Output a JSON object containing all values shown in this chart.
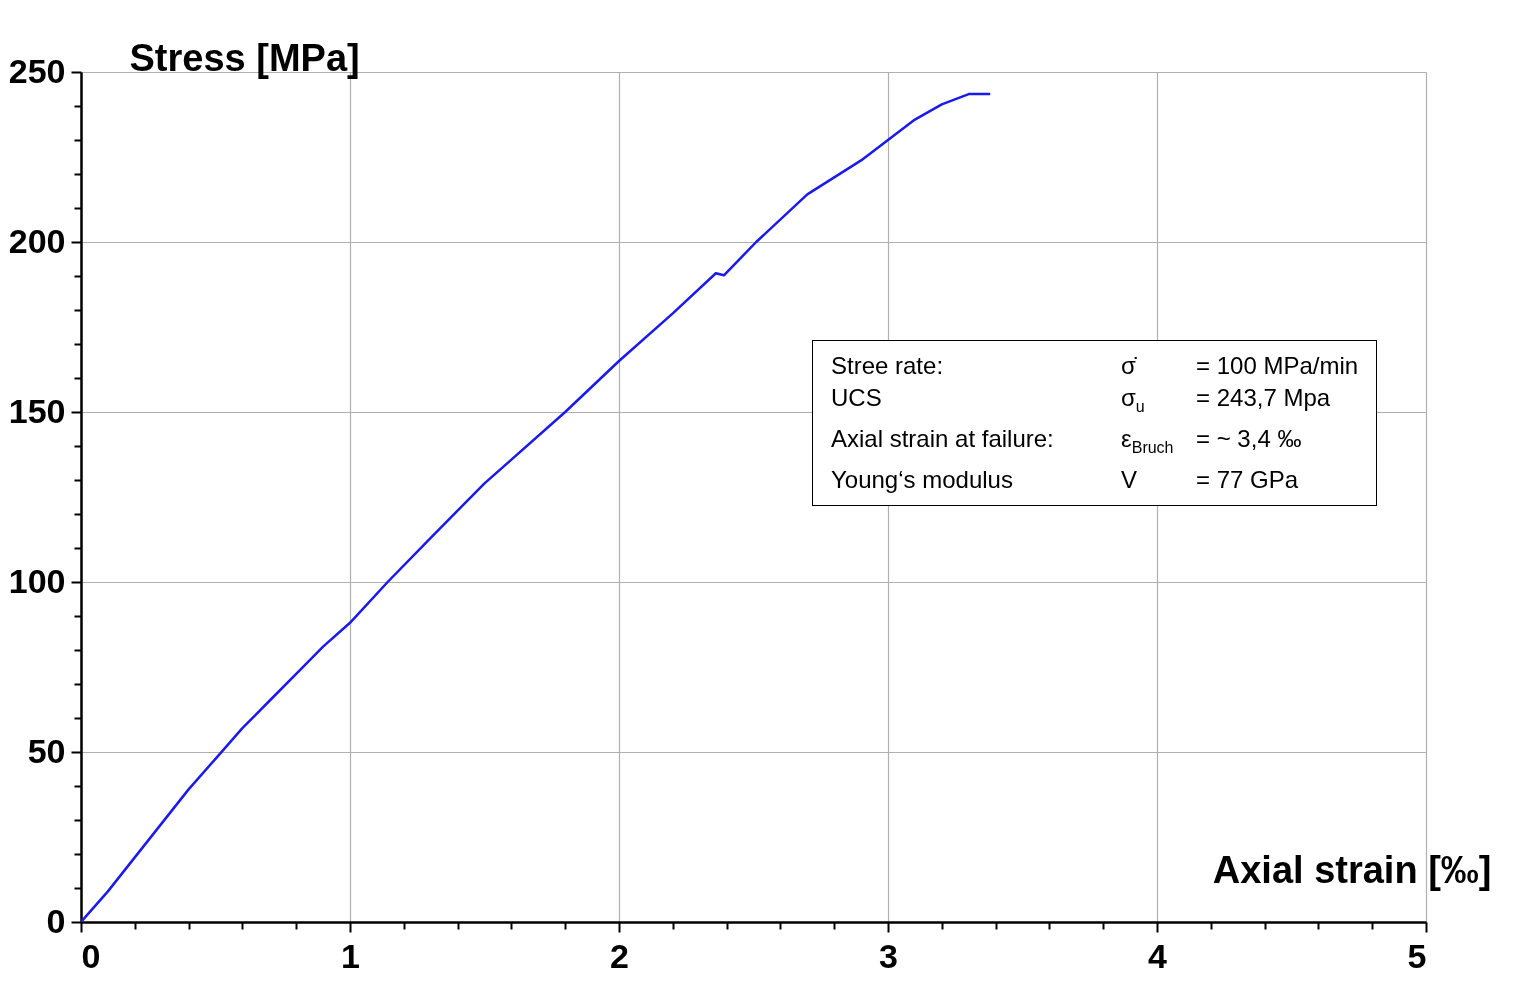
{
  "chart_data": {
    "type": "line",
    "xlabel": "Axial strain [‰]",
    "ylabel": "Stress [MPa]",
    "x": [
      0,
      0.1,
      0.2,
      0.3,
      0.4,
      0.5,
      0.6,
      0.7,
      0.8,
      0.9,
      1.0,
      1.14,
      1.3,
      1.5,
      1.8,
      2.0,
      2.2,
      2.36,
      2.39,
      2.51,
      2.7,
      2.9,
      3.0,
      3.1,
      3.2,
      3.3,
      3.38
    ],
    "series": [
      {
        "color": "#1a1aee",
        "values": [
          0,
          9,
          19,
          29,
          39,
          48,
          57,
          65,
          73,
          81,
          88,
          100,
          113,
          129,
          150,
          165,
          179,
          190.8,
          190.2,
          200,
          214,
          224,
          230,
          236,
          240.5,
          243.5,
          243.5
        ]
      }
    ],
    "xlim": [
      0,
      5
    ],
    "ylim": [
      0,
      250
    ],
    "xticks": [
      0,
      {
        "value": 0.2,
        "label": null
      },
      {
        "value": 0.4,
        "label": null
      },
      {
        "value": 0.6,
        "label": null
      },
      {
        "value": 0.8,
        "label": null
      },
      1,
      {
        "value": 1.2,
        "label": null
      },
      {
        "value": 1.4,
        "label": null
      },
      {
        "value": 1.6,
        "label": null
      },
      {
        "value": 1.8,
        "label": null
      },
      2,
      {
        "value": 2.2,
        "label": null
      },
      {
        "value": 2.4,
        "label": null
      },
      {
        "value": 2.6,
        "label": null
      },
      {
        "value": 2.8,
        "label": null
      },
      3,
      {
        "value": 3.2,
        "label": null
      },
      {
        "value": 3.4,
        "label": null
      },
      {
        "value": 3.6,
        "label": null
      },
      {
        "value": 3.8,
        "label": null
      },
      4,
      {
        "value": 4.2,
        "label": null
      },
      {
        "value": 4.4,
        "label": null
      },
      {
        "value": 4.6,
        "label": null
      },
      {
        "value": 4.8,
        "label": null
      },
      5
    ],
    "yticks": [
      0,
      {
        "value": 10,
        "label": null
      },
      {
        "value": 20,
        "label": null
      },
      {
        "value": 30,
        "label": null
      },
      {
        "value": 40,
        "label": null
      },
      50,
      {
        "value": 60,
        "label": null
      },
      {
        "value": 70,
        "label": null
      },
      {
        "value": 80,
        "label": null
      },
      {
        "value": 90,
        "label": null
      },
      100,
      {
        "value": 110,
        "label": null
      },
      {
        "value": 120,
        "label": null
      },
      {
        "value": 130,
        "label": null
      },
      {
        "value": 140,
        "label": null
      },
      150,
      {
        "value": 160,
        "label": null
      },
      {
        "value": 170,
        "label": null
      },
      {
        "value": 180,
        "label": null
      },
      {
        "value": 190,
        "label": null
      },
      200,
      {
        "value": 210,
        "label": null
      },
      {
        "value": 220,
        "label": null
      },
      {
        "value": 230,
        "label": null
      },
      {
        "value": 240,
        "label": null
      },
      250
    ],
    "grid": true,
    "legend": false,
    "marker": "none",
    "line_style": "solid",
    "annotations": [
      "Stree rate:",
      "σ̇",
      "= 100    MPa/min",
      "UCS",
      "σ$_{u}$",
      "= 243,7 Mpa",
      "Axial strain at failure:",
      "ε$_{Bruch}$",
      "=  ~   3,4 ‰",
      "Young‘s modulus",
      "V",
      "= 77 GPa"
    ]
  }
}
